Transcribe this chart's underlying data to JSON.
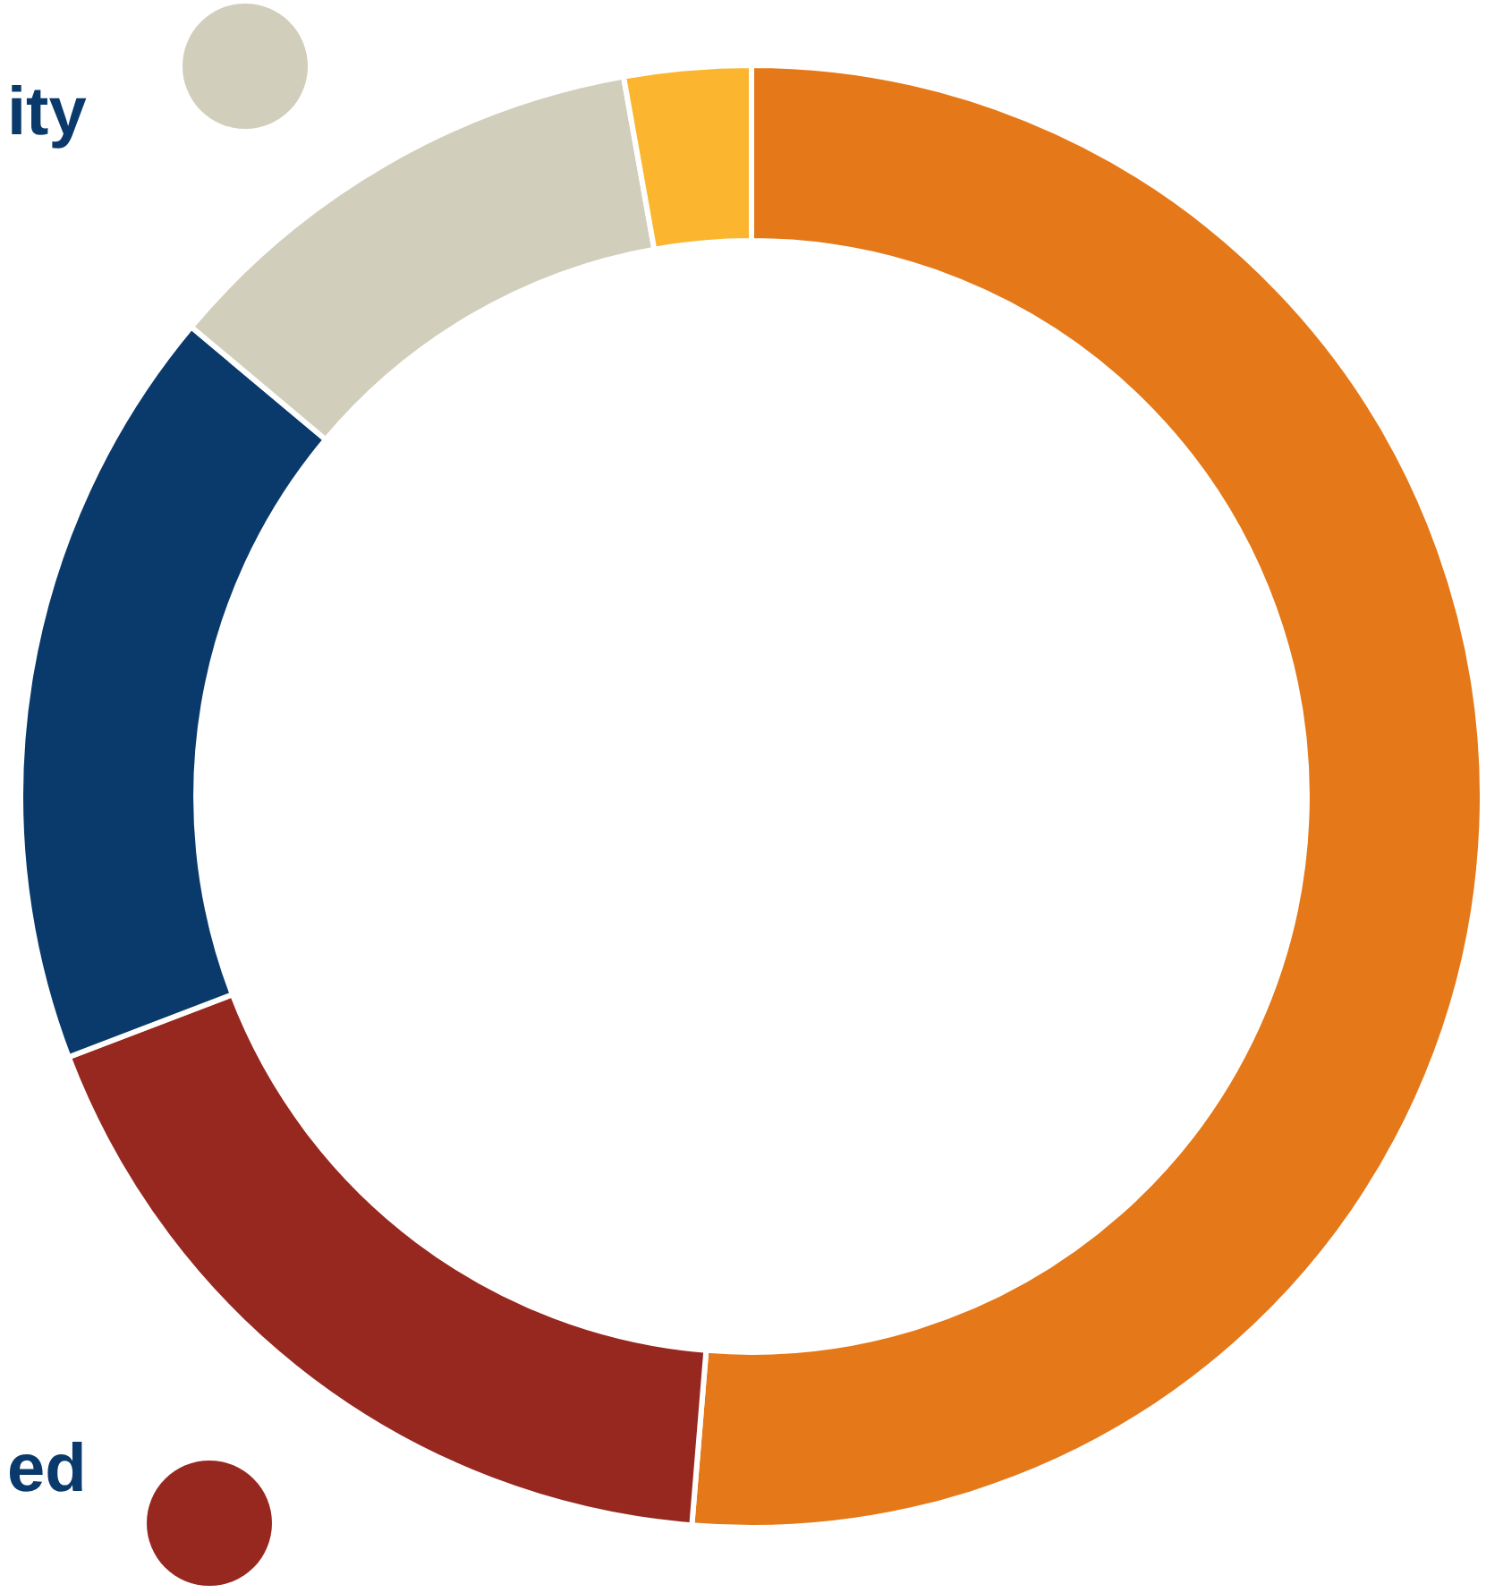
{
  "chart_data": {
    "type": "donut",
    "categories": [
      null,
      "ed",
      null,
      "ity",
      null
    ],
    "values": [
      51.3,
      17.9,
      16.9,
      11.1,
      2.8
    ],
    "colors": [
      "#e57818",
      "#962820",
      "#0a3a6b",
      "#d1cebb",
      "#fbb52f"
    ],
    "legend": "left"
  }
}
